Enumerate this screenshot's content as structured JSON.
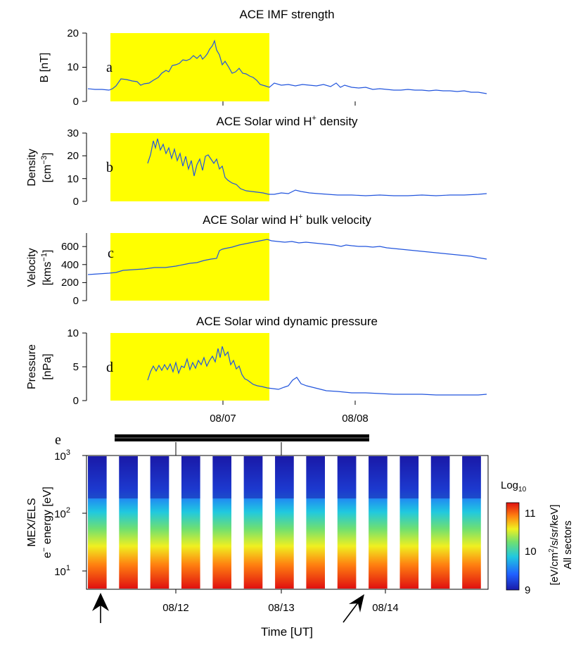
{
  "colors": {
    "highlight": "#ffff00",
    "series": "#2255dd",
    "axis": "#000000",
    "colorbar": [
      "#1a1aa8",
      "#2060ff",
      "#20c8e0",
      "#70e070",
      "#f0f020",
      "#ff8010",
      "#e01010"
    ]
  },
  "chart_data": [
    {
      "type": "line",
      "panel_letter": "a",
      "title": "ACE IMF strength",
      "ylabel": "B [nT]",
      "ylim": [
        0,
        20
      ],
      "yticks": [
        "0",
        "10",
        "20"
      ],
      "x_dates": [
        "08/07",
        "08/08"
      ],
      "highlight_range": [
        "08/06 04:00",
        "08/07 08:30"
      ],
      "series": [
        {
          "x": [
            "08/06 00:00",
            "08/06 04:00",
            "08/06 06:00",
            "08/06 08:00",
            "08/06 10:00",
            "08/06 12:00",
            "08/06 14:00",
            "08/06 16:00",
            "08/06 18:00",
            "08/06 20:00",
            "08/06 22:00",
            "08/07 00:00",
            "08/07 02:00",
            "08/07 04:00",
            "08/07 06:00",
            "08/07 08:00",
            "08/07 12:00",
            "08/07 18:00",
            "08/08 00:00",
            "08/08 06:00",
            "08/08 12:00",
            "08/08 18:00",
            "08/08 23:00"
          ],
          "values": [
            3.5,
            3,
            6.5,
            6,
            4.5,
            5,
            8,
            10,
            12,
            14,
            16,
            18,
            13,
            10,
            6.5,
            4.5,
            4.5,
            5,
            4.5,
            3.5,
            3,
            2.5,
            2
          ]
        }
      ]
    },
    {
      "type": "line",
      "panel_letter": "b",
      "title": "ACE Solar wind H",
      "title_sup": "+",
      "title_rest": " density",
      "ylabel_1": "Density",
      "ylabel_2": "[cm",
      "ylabel_2_sup": "−3",
      "ylabel_2_end": "]",
      "ylim": [
        0,
        30
      ],
      "yticks": [
        "0",
        "10",
        "20",
        "30"
      ],
      "highlight_range": [
        "08/06 04:00",
        "08/07 08:30"
      ],
      "series": [
        {
          "x": [
            "08/06 10:00",
            "08/06 12:00",
            "08/06 14:00",
            "08/06 16:00",
            "08/06 18:00",
            "08/06 20:00",
            "08/06 22:00",
            "08/07 00:00",
            "08/07 02:00",
            "08/07 04:00",
            "08/07 06:00",
            "08/07 08:00",
            "08/07 12:00",
            "08/07 14:00",
            "08/07 18:00",
            "08/08 00:00",
            "08/08 06:00",
            "08/08 12:00",
            "08/08 18:00",
            "08/08 23:00"
          ],
          "values": [
            16,
            26,
            22,
            18,
            14,
            12,
            18,
            19,
            12,
            6,
            4,
            3,
            2.5,
            4.5,
            3.5,
            2.5,
            2.5,
            2,
            2.5,
            3
          ]
        }
      ]
    },
    {
      "type": "line",
      "panel_letter": "c",
      "title": "ACE Solar wind H",
      "title_sup": "+",
      "title_rest": " bulk velocity",
      "ylabel_1": "Velocity",
      "ylabel_2": "[kms",
      "ylabel_2_sup": "−1",
      "ylabel_2_end": "]",
      "ylim": [
        0,
        750
      ],
      "yticks": [
        "0",
        "200",
        "400",
        "600"
      ],
      "highlight_range": [
        "08/06 04:00",
        "08/07 08:30"
      ],
      "series": [
        {
          "x": [
            "08/06 00:00",
            "08/06 04:00",
            "08/06 06:00",
            "08/06 10:00",
            "08/06 14:00",
            "08/06 18:00",
            "08/06 22:00",
            "08/07 00:00",
            "08/07 02:00",
            "08/07 06:00",
            "08/07 08:00",
            "08/07 12:00",
            "08/07 18:00",
            "08/08 00:00",
            "08/08 06:00",
            "08/08 12:00",
            "08/08 18:00",
            "08/08 23:00"
          ],
          "values": [
            285,
            300,
            330,
            350,
            390,
            430,
            460,
            490,
            600,
            670,
            700,
            680,
            650,
            600,
            590,
            570,
            520,
            470
          ]
        }
      ]
    },
    {
      "type": "line",
      "panel_letter": "d",
      "title": "ACE Solar wind dynamic pressure",
      "ylabel_1": "Pressure",
      "ylabel_2": "[nPa]",
      "ylim": [
        0,
        10
      ],
      "yticks": [
        "0",
        "5",
        "10"
      ],
      "highlight_range": [
        "08/06 04:00",
        "08/07 08:30"
      ],
      "series": [
        {
          "x": [
            "08/06 10:00",
            "08/06 12:00",
            "08/06 14:00",
            "08/06 16:00",
            "08/06 18:00",
            "08/06 20:00",
            "08/06 22:00",
            "08/07 00:00",
            "08/07 02:00",
            "08/07 04:00",
            "08/07 06:00",
            "08/07 08:00",
            "08/07 12:00",
            "08/07 14:00",
            "08/07 18:00",
            "08/08 00:00",
            "08/08 06:00",
            "08/08 12:00",
            "08/08 18:00",
            "08/08 23:00"
          ],
          "values": [
            3,
            5,
            4.5,
            4.8,
            5,
            5.5,
            6,
            7.5,
            5.5,
            5,
            3,
            2,
            1.8,
            3.5,
            2,
            1.8,
            1.5,
            1.2,
            1,
            1
          ]
        }
      ]
    },
    {
      "type": "heatmap",
      "panel_letter": "e",
      "ylabel_1": "MEX/ELS",
      "ylabel_2_pre": "e",
      "ylabel_2_sup": "−",
      "ylabel_2": " energy [eV]",
      "yscale": "log",
      "ylim": [
        5,
        1000
      ],
      "yticks": [
        {
          "base": "10",
          "exp": "1"
        },
        {
          "base": "10",
          "exp": "2"
        },
        {
          "base": "10",
          "exp": "3"
        }
      ],
      "xlabel": "Time [UT]",
      "x_dates": [
        "08/12",
        "08/13",
        "08/14"
      ],
      "colorbar": {
        "title": "Log",
        "title_sub": "10",
        "ticks": [
          "9",
          "10",
          "11"
        ],
        "label_pre": "[eV/cm",
        "label_sup": "2",
        "label_end": "/s/sr/keV]",
        "label_2": "All sectors"
      },
      "orbit_stripes_count": 13
    }
  ]
}
